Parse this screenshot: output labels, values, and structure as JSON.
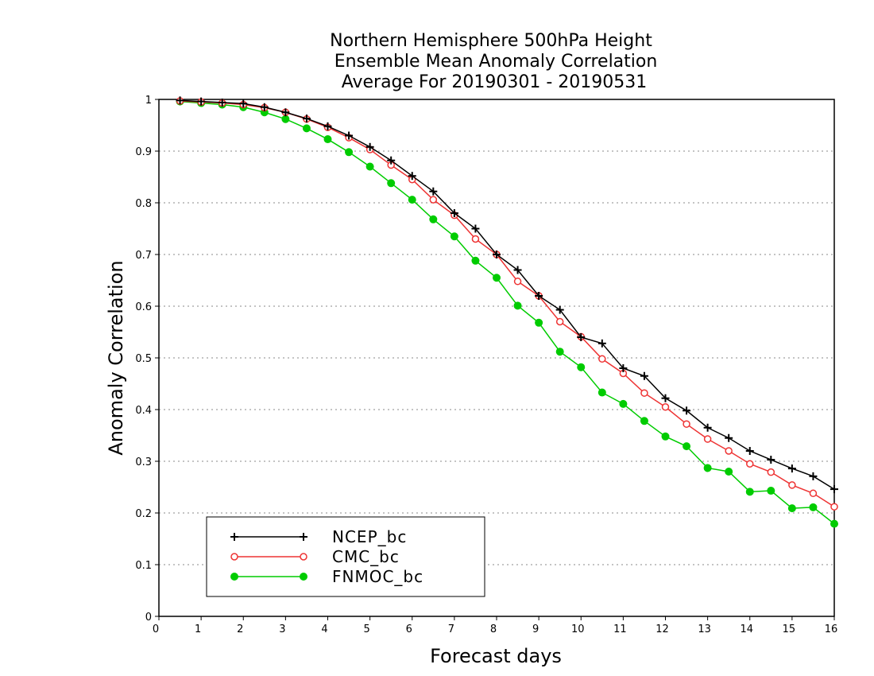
{
  "chart_data": {
    "type": "line",
    "title": [
      "Northern Hemisphere 500hPa Height",
      "Ensemble Mean Anomaly Correlation",
      "Average For 20190301 - 20190531"
    ],
    "xlabel": "Forecast days",
    "ylabel": "Anomaly Correlation",
    "xlim": [
      0,
      16
    ],
    "ylim": [
      0,
      1
    ],
    "xticks": [
      "0",
      "1",
      "2",
      "3",
      "4",
      "5",
      "6",
      "7",
      "8",
      "9",
      "10",
      "11",
      "12",
      "13",
      "14",
      "15",
      "16"
    ],
    "yticks": [
      "0",
      "0.1",
      "0.2",
      "0.3",
      "0.4",
      "0.5",
      "0.6",
      "0.7",
      "0.8",
      "0.9",
      "1"
    ],
    "grid": "horizontal dotted",
    "legend_position": "bottom-left",
    "x": [
      0.5,
      1,
      1.5,
      2,
      2.5,
      3,
      3.5,
      4,
      4.5,
      5,
      5.5,
      6,
      6.5,
      7,
      7.5,
      8,
      8.5,
      9,
      9.5,
      10,
      10.5,
      11,
      11.5,
      12,
      12.5,
      13,
      13.5,
      14,
      14.5,
      15,
      15.5,
      16
    ],
    "series": [
      {
        "name": "NCEP_bc",
        "color": "#000000",
        "marker": "plus",
        "values": [
          0.998,
          0.996,
          0.994,
          0.992,
          0.985,
          0.975,
          0.963,
          0.948,
          0.93,
          0.908,
          0.882,
          0.852,
          0.822,
          0.78,
          0.75,
          0.7,
          0.67,
          0.62,
          0.593,
          0.54,
          0.528,
          0.48,
          0.465,
          0.422,
          0.398,
          0.365,
          0.345,
          0.32,
          0.303,
          0.286,
          0.271,
          0.246
        ]
      },
      {
        "name": "CMC_bc",
        "color": "#ee3333",
        "marker": "open-circle",
        "values": [
          0.997,
          0.995,
          0.993,
          0.99,
          0.984,
          0.975,
          0.962,
          0.946,
          0.926,
          0.903,
          0.873,
          0.845,
          0.806,
          0.776,
          0.73,
          0.7,
          0.648,
          0.62,
          0.57,
          0.541,
          0.498,
          0.47,
          0.432,
          0.405,
          0.372,
          0.343,
          0.32,
          0.295,
          0.279,
          0.254,
          0.238,
          0.212
        ]
      },
      {
        "name": "FNMOC_bc",
        "color": "#00cc00",
        "marker": "filled-circle",
        "values": [
          0.996,
          0.993,
          0.99,
          0.985,
          0.975,
          0.962,
          0.944,
          0.923,
          0.898,
          0.87,
          0.838,
          0.806,
          0.768,
          0.735,
          0.688,
          0.655,
          0.601,
          0.568,
          0.512,
          0.482,
          0.433,
          0.411,
          0.378,
          0.348,
          0.329,
          0.287,
          0.28,
          0.241,
          0.243,
          0.209,
          0.211,
          0.179
        ]
      }
    ]
  }
}
